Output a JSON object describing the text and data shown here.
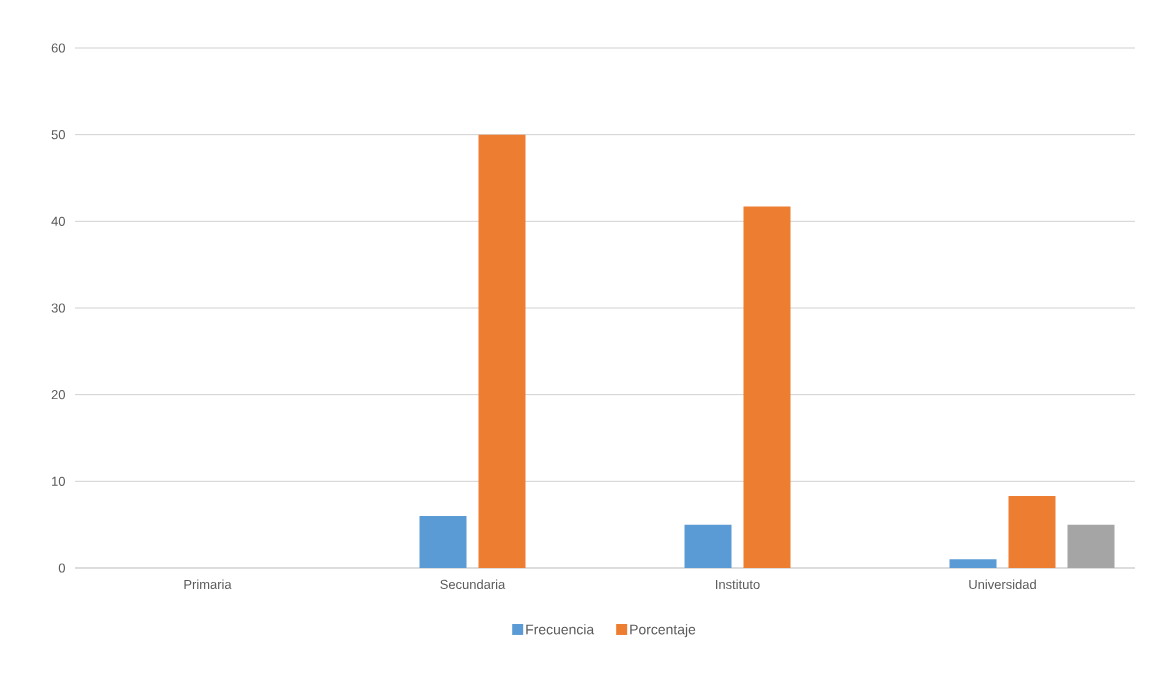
{
  "chart_data": {
    "type": "bar",
    "categories": [
      "Primaria",
      "Secundaria",
      "Instituto",
      "Universidad"
    ],
    "series": [
      {
        "name": "Frecuencia",
        "color": "#5b9bd5",
        "values": [
          0,
          6,
          5,
          1
        ]
      },
      {
        "name": "Porcentaje",
        "color": "#ed7d31",
        "values": [
          0,
          50,
          41.7,
          8.3
        ]
      },
      {
        "color": "#a5a5a5",
        "values": [
          null,
          null,
          null,
          5
        ]
      }
    ],
    "ylim": [
      0,
      60
    ],
    "yticks": [
      0,
      10,
      20,
      30,
      40,
      50,
      60
    ],
    "grid": "y",
    "legend": "bottom"
  }
}
